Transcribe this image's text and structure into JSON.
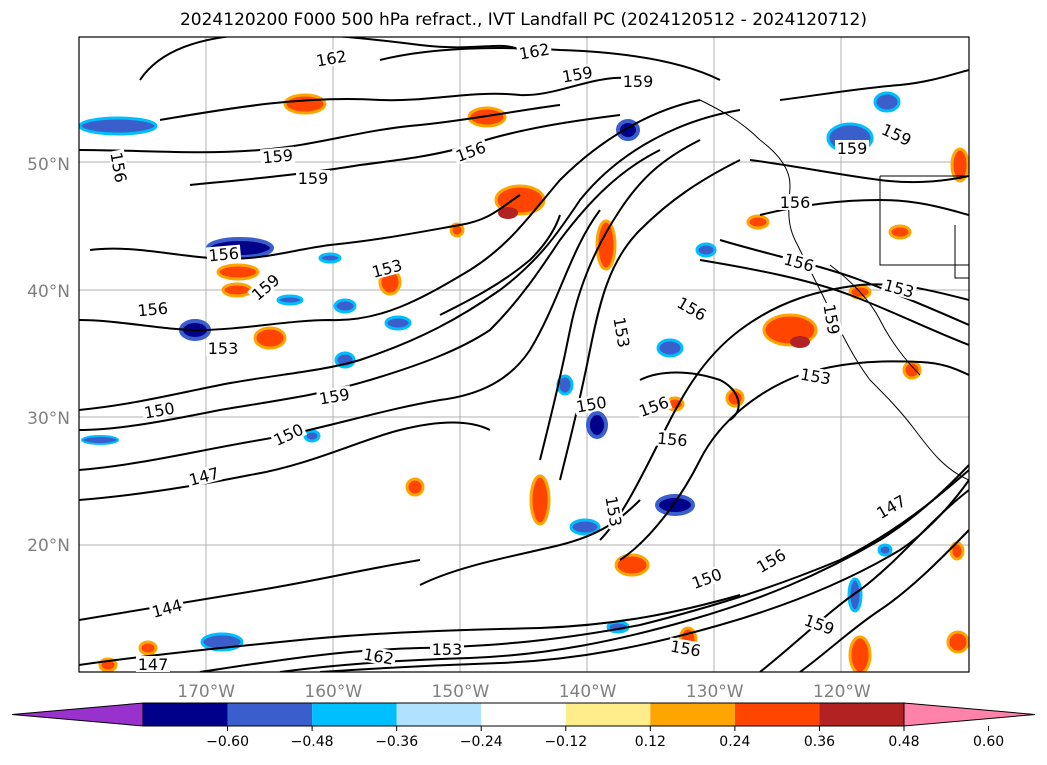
{
  "title": "2024120200 F000 500 hPa refract., IVT Landfall PC (2024120512 - 2024120712)",
  "map": {
    "lat_labels": [
      {
        "label": "50°N",
        "value": 50
      },
      {
        "label": "40°N",
        "value": 40
      },
      {
        "label": "30°N",
        "value": 30
      },
      {
        "label": "20°N",
        "value": 20
      }
    ],
    "lon_labels": [
      {
        "label": "170°W",
        "value": -170
      },
      {
        "label": "160°W",
        "value": -160
      },
      {
        "label": "150°W",
        "value": -150
      },
      {
        "label": "140°W",
        "value": -140
      },
      {
        "label": "130°W",
        "value": -130
      },
      {
        "label": "120°W",
        "value": -120
      }
    ],
    "contour_labels": [
      {
        "text": "162"
      },
      {
        "text": "162"
      },
      {
        "text": "159"
      },
      {
        "text": "159"
      },
      {
        "text": "159"
      },
      {
        "text": "159"
      },
      {
        "text": "156"
      },
      {
        "text": "159"
      },
      {
        "text": "159"
      },
      {
        "text": "156"
      },
      {
        "text": "156"
      },
      {
        "text": "153"
      },
      {
        "text": "156"
      },
      {
        "text": "159"
      },
      {
        "text": "153"
      },
      {
        "text": "153"
      },
      {
        "text": "156"
      },
      {
        "text": "156"
      },
      {
        "text": "153"
      },
      {
        "text": "159"
      },
      {
        "text": "153"
      },
      {
        "text": "150"
      },
      {
        "text": "156"
      },
      {
        "text": "156"
      },
      {
        "text": "156"
      },
      {
        "text": "150"
      },
      {
        "text": "159"
      },
      {
        "text": "150"
      },
      {
        "text": "147"
      },
      {
        "text": "153"
      },
      {
        "text": "144"
      },
      {
        "text": "147"
      },
      {
        "text": "162"
      },
      {
        "text": "153"
      },
      {
        "text": "150"
      },
      {
        "text": "156"
      },
      {
        "text": "147"
      },
      {
        "text": "159"
      },
      {
        "text": "156"
      }
    ]
  },
  "colorbar": {
    "ticks": [
      "−0.60",
      "−0.48",
      "−0.36",
      "−0.24",
      "−0.12",
      "0.12",
      "0.24",
      "0.36",
      "0.48",
      "0.60"
    ],
    "colors": [
      "#9932cc",
      "#00008b",
      "#3a5fcd",
      "#00bfff",
      "#b0e2ff",
      "#ffffff",
      "#ffec8b",
      "#ffa500",
      "#ff4500",
      "#b22222",
      "#ff82ab"
    ]
  }
}
